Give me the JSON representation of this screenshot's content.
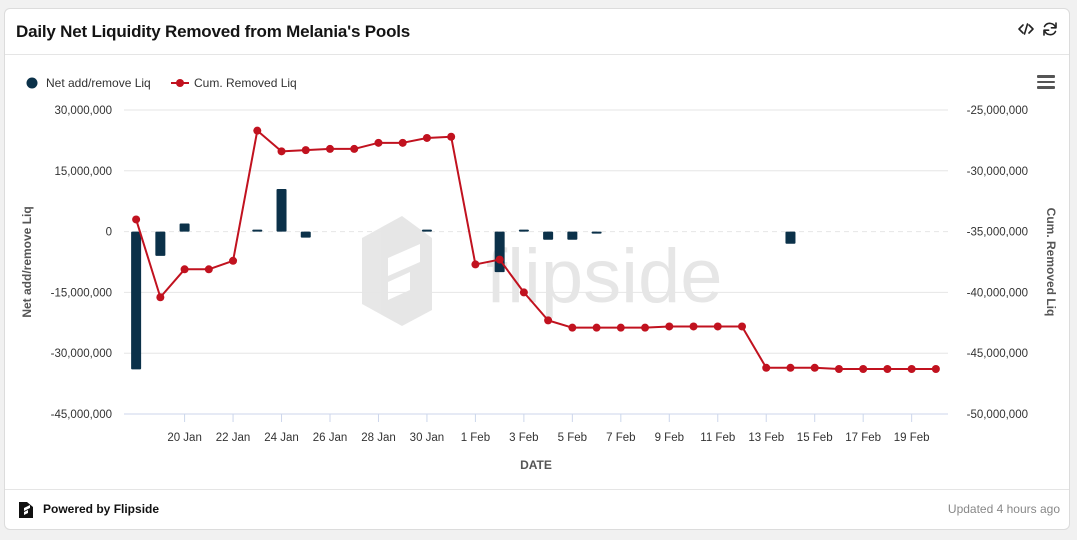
{
  "header": {
    "title": "Daily Net Liquidity Removed from Melania's Pools"
  },
  "icons": {
    "embed": "code-icon",
    "refresh": "refresh-icon",
    "menu": "hamburger-menu-icon",
    "logo": "flipside-logo-icon"
  },
  "watermark": "flipside",
  "footer": {
    "powered_by": "Powered by Flipside",
    "updated": "Updated 4 hours ago"
  },
  "colors": {
    "bar": "#0b3149",
    "line": "#c1121f",
    "grid": "#e6e6e6"
  },
  "chart_data": {
    "type": "bar+line",
    "xlabel": "DATE",
    "dates": [
      "18 Jan",
      "19 Jan",
      "20 Jan",
      "21 Jan",
      "22 Jan",
      "23 Jan",
      "24 Jan",
      "25 Jan",
      "26 Jan",
      "27 Jan",
      "28 Jan",
      "29 Jan",
      "30 Jan",
      "31 Jan",
      "1 Feb",
      "2 Feb",
      "3 Feb",
      "4 Feb",
      "5 Feb",
      "6 Feb",
      "7 Feb",
      "8 Feb",
      "9 Feb",
      "10 Feb",
      "11 Feb",
      "12 Feb",
      "13 Feb",
      "14 Feb",
      "15 Feb",
      "16 Feb",
      "17 Feb",
      "18 Feb",
      "19 Feb",
      "20 Feb"
    ],
    "x_tick_labels": [
      "20 Jan",
      "22 Jan",
      "24 Jan",
      "26 Jan",
      "28 Jan",
      "30 Jan",
      "1 Feb",
      "3 Feb",
      "5 Feb",
      "7 Feb",
      "9 Feb",
      "11 Feb",
      "13 Feb",
      "15 Feb",
      "17 Feb",
      "19 Feb"
    ],
    "series": [
      {
        "name": "Net add/remove Liq",
        "type": "bar",
        "axis": "left",
        "values": [
          -34000000,
          -6000000,
          2000000,
          0,
          0,
          500000,
          10500000,
          -1500000,
          0,
          0,
          0,
          0,
          500000,
          0,
          0,
          -10000000,
          500000,
          -2000000,
          -2000000,
          -500000,
          0,
          0,
          0,
          0,
          0,
          0,
          0,
          -3000000,
          0,
          0,
          0,
          0,
          0,
          0
        ]
      },
      {
        "name": "Cum. Removed Liq",
        "type": "line",
        "axis": "right",
        "values": [
          -34000000,
          -40400000,
          -38100000,
          -38100000,
          -37400000,
          -26700000,
          -28400000,
          -28300000,
          -28200000,
          -28200000,
          -27700000,
          -27700000,
          -27300000,
          -27200000,
          -37700000,
          -37300000,
          -40000000,
          -42300000,
          -42900000,
          -42900000,
          -42900000,
          -42900000,
          -42800000,
          -42800000,
          -42800000,
          -42800000,
          -46200000,
          -46200000,
          -46200000,
          -46300000,
          -46300000,
          -46300000,
          -46300000,
          -46300000
        ]
      }
    ],
    "y_left": {
      "label": "Net add/remove Liq",
      "range": [
        -45000000,
        30000000
      ],
      "ticks": [
        "30,000,000",
        "15,000,000",
        "0",
        "-15,000,000",
        "-30,000,000",
        "-45,000,000"
      ]
    },
    "y_right": {
      "label": "Cum. Removed Liq",
      "range": [
        -50000000,
        -25000000
      ],
      "ticks": [
        "-25,000,000",
        "-30,000,000",
        "-35,000,000",
        "-40,000,000",
        "-45,000,000",
        "-50,000,000"
      ]
    },
    "legend": {
      "placement": "top-left"
    }
  }
}
